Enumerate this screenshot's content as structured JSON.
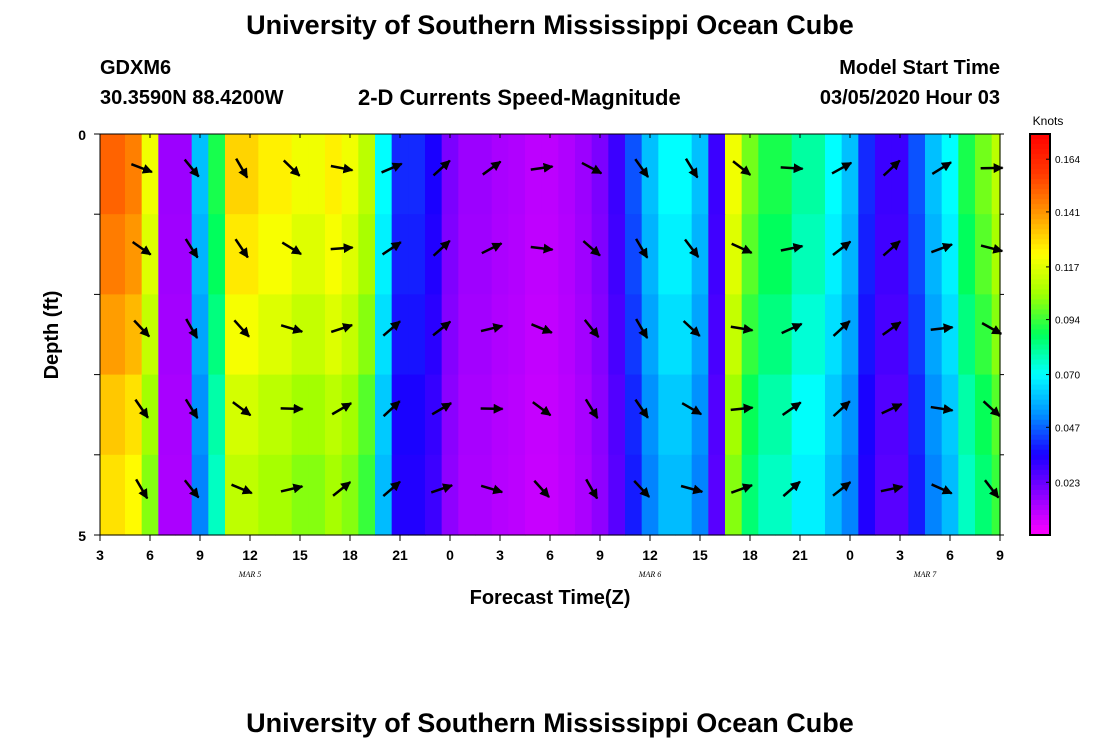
{
  "header": {
    "title": "University of Southern Mississippi Ocean Cube",
    "footer_title": "University of Southern Mississippi Ocean Cube",
    "station": "GDXM6",
    "location": "30.3590N 88.4200W",
    "plot_title": "2-D Currents Speed-Magnitude",
    "model_start_label": "Model Start Time",
    "model_start_value": "03/05/2020 Hour 03"
  },
  "chart_data": {
    "type": "heatmap",
    "xlabel": "Forecast Time(Z)",
    "ylabel": "Depth (ft)",
    "colorbar_label": "Knots",
    "x_tick_labels": [
      "3",
      "6",
      "9",
      "12",
      "15",
      "18",
      "21",
      "0",
      "3",
      "6",
      "9",
      "12",
      "15",
      "18",
      "21",
      "0",
      "3",
      "6",
      "9"
    ],
    "date_labels": [
      {
        "text": "MAR 5",
        "hour_index": 3
      },
      {
        "text": "MAR 6",
        "hour_index": 11
      },
      {
        "text": "MAR 7",
        "hour_index": 16.5
      }
    ],
    "y_tick_labels": [
      {
        "value": 0,
        "label": "0"
      },
      {
        "value": 5,
        "label": "5"
      }
    ],
    "ylim": [
      0,
      5
    ],
    "hours_range": [
      0,
      54
    ],
    "colorbar_ticks": [
      "0.164",
      "0.141",
      "0.117",
      "0.094",
      "0.070",
      "0.047",
      "0.023"
    ],
    "colorbar_range": [
      0,
      0.175
    ],
    "colors": [
      "#ff00ff",
      "#8c00ff",
      "#1a00ff",
      "#0090ff",
      "#00ffff",
      "#00ff5a",
      "#a0ff00",
      "#ffff00",
      "#ff9a00",
      "#ff3a00",
      "#ff0000"
    ],
    "grid": false,
    "speed_profile_knots": [
      0.15,
      0.15,
      0.145,
      0.12,
      0.015,
      0.015,
      0.06,
      0.09,
      0.13,
      0.13,
      0.125,
      0.125,
      0.12,
      0.12,
      0.125,
      0.12,
      0.11,
      0.07,
      0.04,
      0.04,
      0.035,
      0.02,
      0.015,
      0.015,
      0.013,
      0.012,
      0.01,
      0.01,
      0.012,
      0.015,
      0.02,
      0.03,
      0.045,
      0.06,
      0.07,
      0.07,
      0.06,
      0.03,
      0.12,
      0.1,
      0.09,
      0.09,
      0.08,
      0.08,
      0.07,
      0.06,
      0.04,
      0.03,
      0.03,
      0.045,
      0.06,
      0.07,
      0.09,
      0.1,
      0.11
    ]
  }
}
